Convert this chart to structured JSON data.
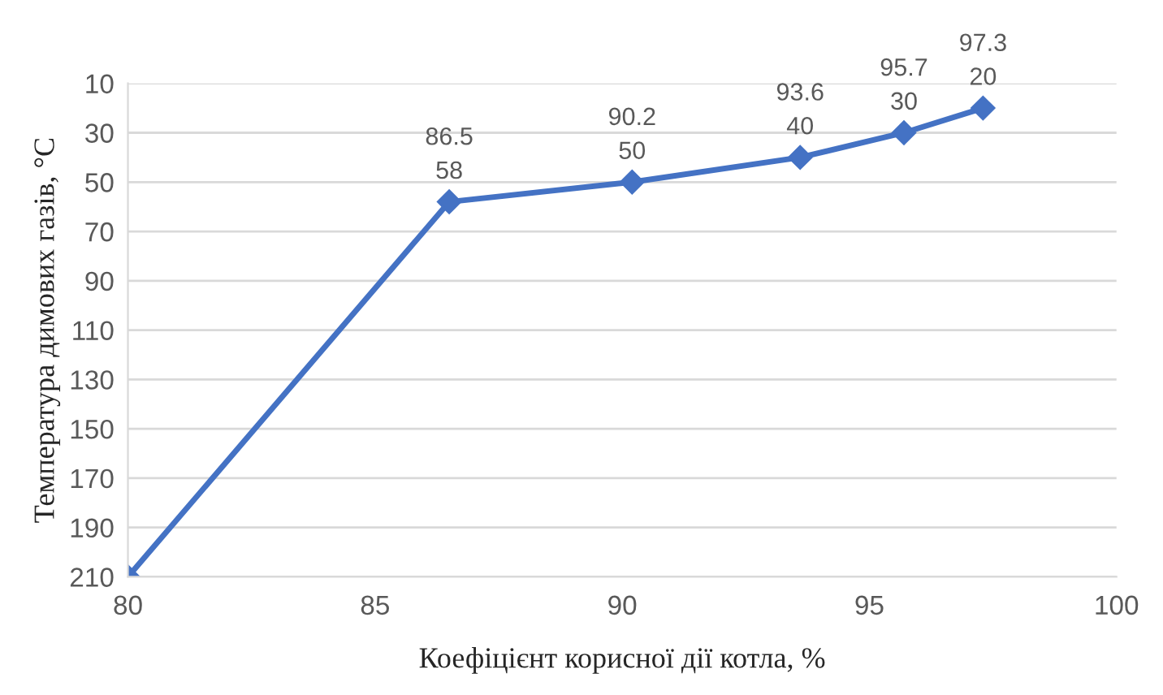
{
  "chart_data": {
    "type": "line",
    "xlabel": "Коефіцієнт корисної дії котла, %",
    "ylabel": "Температура димових газів, °C",
    "x": [
      80,
      86.5,
      90.2,
      93.6,
      95.7,
      97.3
    ],
    "series": [
      {
        "color": "#4472c4",
        "values": [
          210,
          58,
          50,
          40,
          30,
          20
        ],
        "value_labels": [
          null,
          "86.5\n58",
          "90.2\n50",
          "93.6\n40",
          "95.7\n30",
          "97.3\n20"
        ]
      }
    ],
    "xlim": [
      80,
      100
    ],
    "xticks": [
      80,
      85,
      90,
      95,
      100
    ],
    "ylim": [
      210,
      10
    ],
    "yticks": [
      10,
      30,
      50,
      70,
      90,
      110,
      130,
      150,
      170,
      190,
      210
    ],
    "grid": "y",
    "marker": "diamond",
    "line_style": "solid"
  }
}
